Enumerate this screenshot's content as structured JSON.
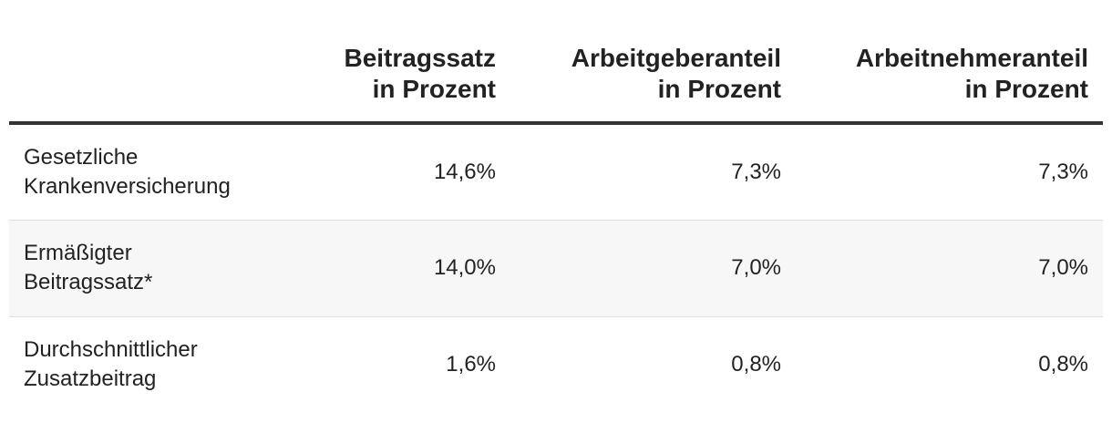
{
  "table": {
    "headers": [
      {
        "lines": [
          "",
          ""
        ]
      },
      {
        "lines": [
          "Beitragssatz",
          "in Prozent"
        ]
      },
      {
        "lines": [
          "Arbeitgeberanteil",
          "in Prozent"
        ]
      },
      {
        "lines": [
          "Arbeitnehmeranteil",
          "in Prozent"
        ]
      }
    ],
    "rows": [
      {
        "label_lines": [
          "Gesetzliche",
          "Krankenversicherung"
        ],
        "values": [
          "14,6%",
          "7,3%",
          "7,3%"
        ]
      },
      {
        "label_lines": [
          "Ermäßigter",
          "Beitragssatz*"
        ],
        "values": [
          "14,0%",
          "7,0%",
          "7,0%"
        ]
      },
      {
        "label_lines": [
          "Durchschnittlicher",
          "Zusatzbeitrag"
        ],
        "values": [
          "1,6%",
          "0,8%",
          "0,8%"
        ]
      }
    ]
  }
}
